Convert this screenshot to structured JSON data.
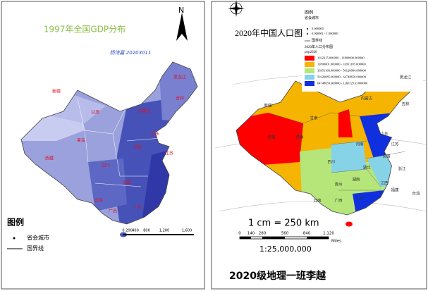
{
  "left_map": {
    "title": "1997年全国GDP分布",
    "author": "杨诗嘉 20203011",
    "north": "N",
    "legend": {
      "title": "图例",
      "items": [
        "省会城市",
        "国界线"
      ]
    },
    "scale_ticks": [
      "0",
      "200",
      "400",
      "800",
      "1,200",
      "1,600"
    ],
    "labels": [
      "新疆",
      "西藏",
      "青海",
      "甘肃",
      "内蒙古",
      "黑龙江",
      "吉林",
      "四川",
      "云南",
      "广东",
      "湖南",
      "河南",
      "山东",
      "江苏",
      "广西"
    ]
  },
  "right_map": {
    "title": "2020年中国人口图",
    "legend": {
      "title": "图例",
      "capital": "省会城市",
      "capital_items": [
        "0.000000",
        "0.000001 - 1.000000"
      ],
      "border": "国界线",
      "layer": "2020年人口分布图",
      "field": "pop2020",
      "classes": [
        "1022215.000000 - 11800000.000000",
        "11800001.000000 - 33951185.000000",
        "33951186.000000 - 50120884.000000",
        "50120885.000000 - 64748658.000000",
        "64748659.000000 - 126012510.000000"
      ],
      "colors": [
        "#ff0000",
        "#f5b400",
        "#b6e67a",
        "#86d2e6",
        "#1030e0"
      ]
    },
    "scale_text": "1 cm = 250 km",
    "scale_ticks": [
      "0",
      "140",
      "280",
      "560",
      "840",
      "1,120"
    ],
    "scale_unit": "Miles",
    "ratio": "1:25,000,000",
    "footer": "2020级地理一班李越",
    "labels": [
      "新疆",
      "西藏",
      "青海",
      "甘肃",
      "内蒙古",
      "黑龙江",
      "吉林",
      "四川",
      "云南",
      "广东",
      "湖南",
      "河南",
      "山东",
      "江苏",
      "浙江",
      "湖北",
      "安徽",
      "江西",
      "福建",
      "广西",
      "贵州",
      "台湾"
    ]
  }
}
